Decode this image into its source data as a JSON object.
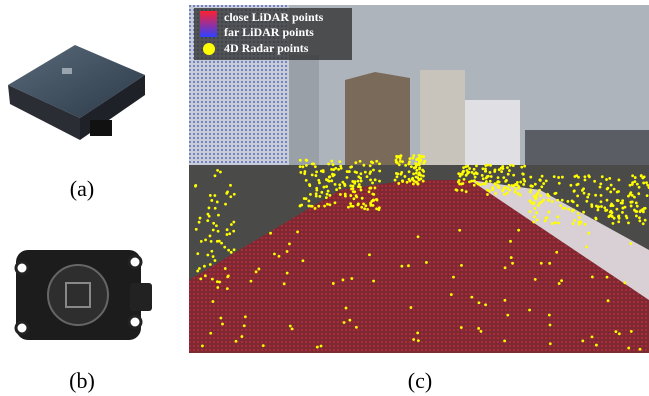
{
  "figure": {
    "panels": [
      {
        "label": "(a)"
      },
      {
        "label": "(b)"
      },
      {
        "label": "(c)",
        "legend": [
          "close LiDAR points",
          "far LiDAR points",
          "4D Radar points"
        ]
      }
    ]
  }
}
